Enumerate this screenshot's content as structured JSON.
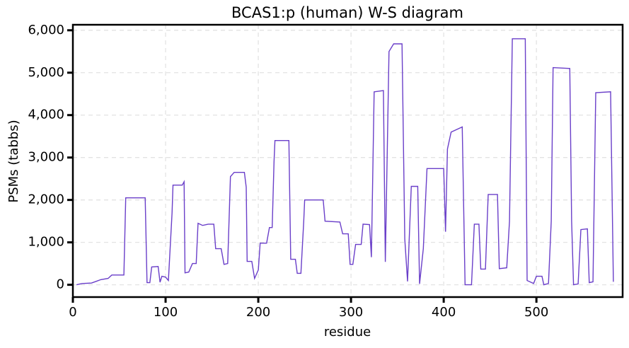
{
  "chart_data": {
    "type": "line",
    "title": "BCAS1:p (human) W-S diagram",
    "x_label": "residue",
    "y_label": "PSMs (tabbs)",
    "color": "#6a3fc9",
    "grid": true,
    "x": [
      4,
      10,
      20,
      25,
      30,
      38,
      42,
      55,
      57,
      78,
      80,
      83,
      85,
      92,
      94,
      96,
      100,
      103,
      107,
      108,
      118,
      120,
      121,
      125,
      129,
      133,
      135,
      140,
      146,
      152,
      154,
      160,
      163,
      167,
      170,
      174,
      185,
      187,
      188,
      193,
      196,
      200,
      202,
      209,
      212,
      215,
      217,
      218,
      233,
      235,
      240,
      242,
      246,
      249,
      250,
      270,
      272,
      288,
      291,
      297,
      299,
      302,
      305,
      311,
      313,
      320,
      322,
      325,
      335,
      337,
      341,
      346,
      355,
      358,
      361,
      365,
      372,
      374,
      378,
      382,
      400,
      402,
      404,
      408,
      420,
      423,
      430,
      433,
      438,
      440,
      445,
      448,
      458,
      460,
      468,
      471,
      474,
      488,
      490,
      497,
      500,
      506,
      508,
      513,
      516,
      518,
      536,
      538,
      540,
      545,
      548,
      555,
      557,
      561,
      564,
      580,
      583
    ],
    "values": [
      0,
      30,
      40,
      80,
      120,
      150,
      230,
      230,
      2050,
      2050,
      50,
      50,
      420,
      430,
      60,
      200,
      180,
      100,
      1700,
      2350,
      2350,
      2430,
      280,
      300,
      500,
      500,
      1450,
      1400,
      1430,
      1430,
      850,
      850,
      480,
      500,
      2550,
      2650,
      2650,
      2300,
      550,
      550,
      150,
      350,
      980,
      980,
      1350,
      1350,
      2900,
      3400,
      3400,
      600,
      600,
      270,
      270,
      1500,
      2000,
      2000,
      1500,
      1480,
      1200,
      1200,
      480,
      480,
      950,
      950,
      1430,
      1420,
      650,
      4550,
      4580,
      540,
      5500,
      5680,
      5680,
      1080,
      80,
      2320,
      2320,
      20,
      850,
      2740,
      2740,
      1250,
      3200,
      3600,
      3720,
      0,
      0,
      1430,
      1430,
      370,
      370,
      2130,
      2130,
      380,
      400,
      1500,
      5800,
      5800,
      100,
      30,
      200,
      200,
      0,
      30,
      1500,
      5120,
      5100,
      1500,
      0,
      20,
      1300,
      1320,
      50,
      70,
      4530,
      4550,
      70
    ],
    "xlim": [
      0,
      593
    ],
    "ylim": [
      -290,
      6130
    ],
    "xticks": [
      0,
      100,
      200,
      300,
      400,
      500
    ],
    "yticks": [
      0,
      {
        "value": 1000,
        "label": "1,000"
      },
      {
        "value": 2000,
        "label": "2,000"
      },
      {
        "value": 3000,
        "label": "3,000"
      },
      {
        "value": 4000,
        "label": "4,000"
      },
      {
        "value": 5000,
        "label": "5,000"
      },
      {
        "value": 6000,
        "label": "6,000"
      }
    ]
  }
}
